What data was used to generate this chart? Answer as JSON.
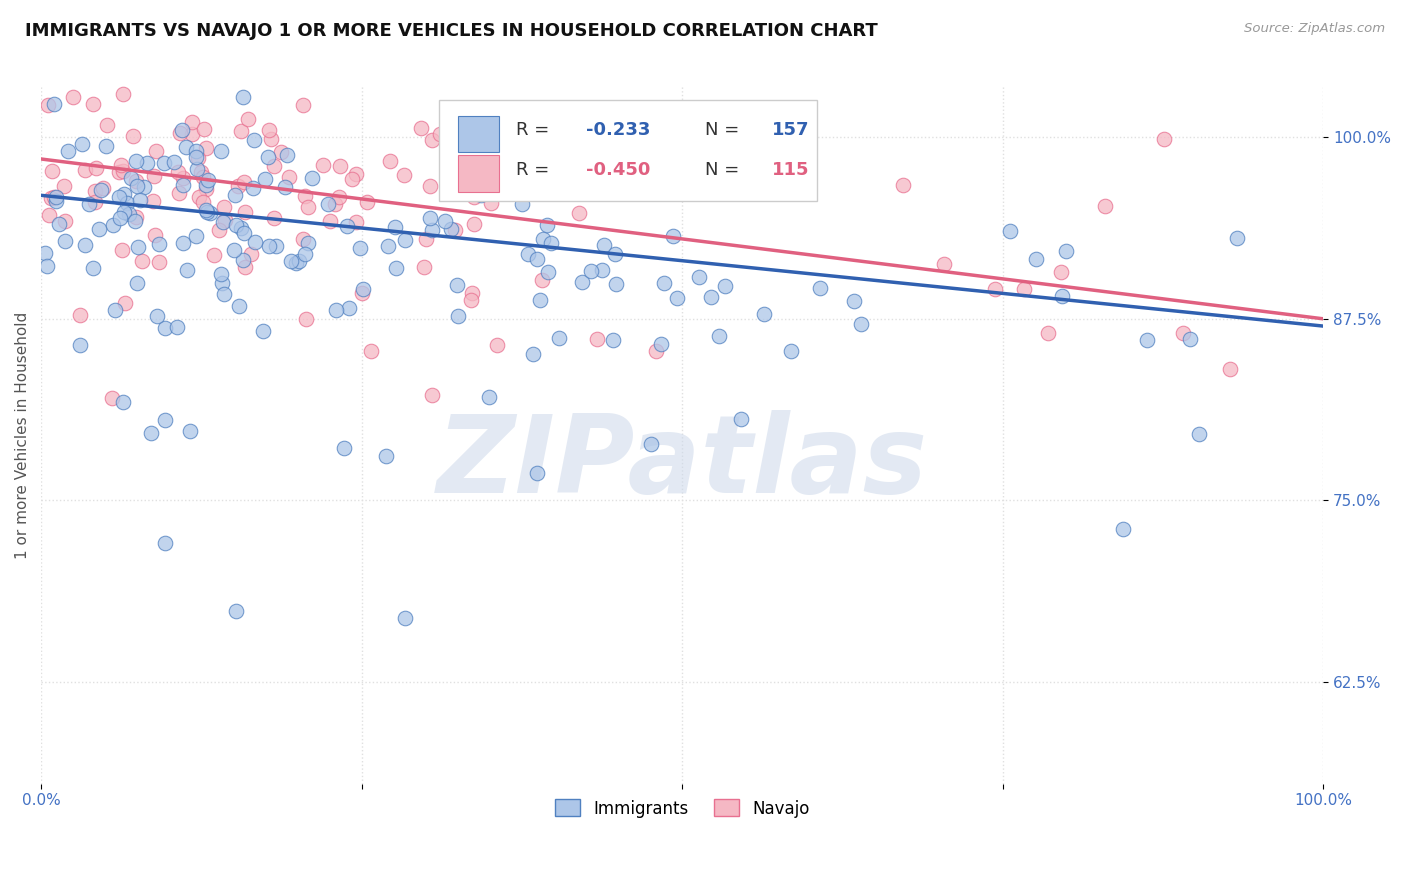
{
  "title": "IMMIGRANTS VS NAVAJO 1 OR MORE VEHICLES IN HOUSEHOLD CORRELATION CHART",
  "source": "Source: ZipAtlas.com",
  "ylabel": "1 or more Vehicles in Household",
  "legend_label_blue": "Immigrants",
  "legend_label_pink": "Navajo",
  "R_blue": -0.233,
  "N_blue": 157,
  "R_pink": -0.45,
  "N_pink": 115,
  "color_blue_face": "#adc6e8",
  "color_blue_edge": "#5080c0",
  "color_pink_face": "#f5b8c4",
  "color_pink_edge": "#e87090",
  "line_color_blue": "#3060b0",
  "line_color_pink": "#e06080",
  "xlim": [
    0.0,
    1.0
  ],
  "ylim": [
    0.555,
    1.035
  ],
  "yticks": [
    0.625,
    0.75,
    0.875,
    1.0
  ],
  "ytick_labels": [
    "62.5%",
    "75.0%",
    "87.5%",
    "100.0%"
  ],
  "watermark": "ZIPatlas",
  "background_color": "#ffffff",
  "grid_color": "#e0e0e0",
  "title_color": "#111111",
  "tick_label_color": "#4472c4",
  "blue_line_y0": 0.96,
  "blue_line_y1": 0.87,
  "pink_line_y0": 0.985,
  "pink_line_y1": 0.875,
  "seed": 77
}
